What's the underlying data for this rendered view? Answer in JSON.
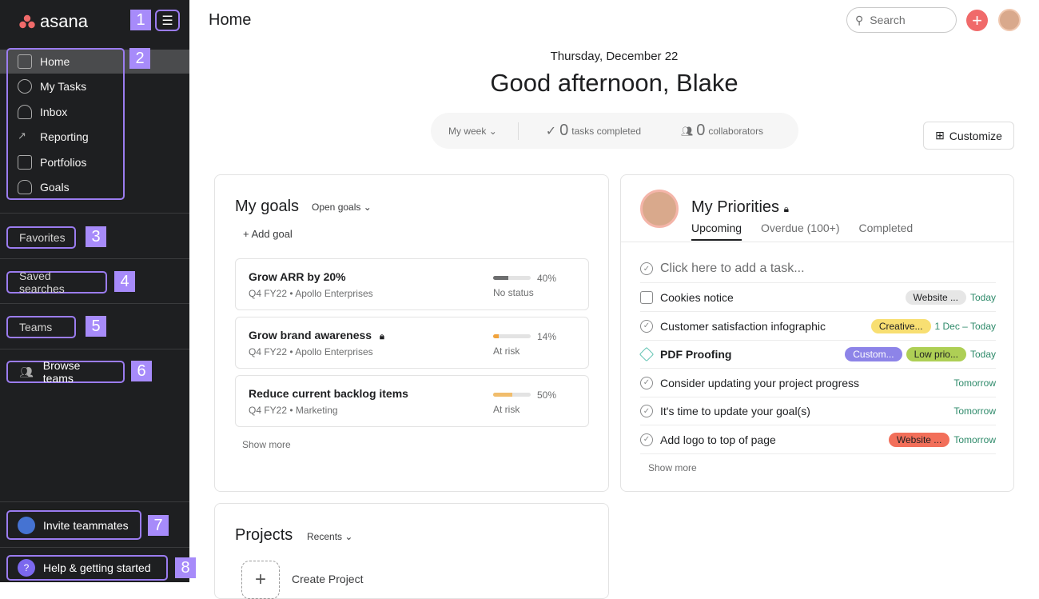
{
  "sidebar": {
    "logo": "asana",
    "nav": [
      {
        "label": "Home",
        "icon": "home-icon"
      },
      {
        "label": "My Tasks",
        "icon": "check-circle-icon"
      },
      {
        "label": "Inbox",
        "icon": "bell-icon"
      },
      {
        "label": "Reporting",
        "icon": "chart-line-icon"
      },
      {
        "label": "Portfolios",
        "icon": "folder-chart-icon"
      },
      {
        "label": "Goals",
        "icon": "person-icon"
      }
    ],
    "favorites": "Favorites",
    "saved_searches": "Saved searches",
    "teams": "Teams",
    "browse_teams": "Browse teams",
    "invite": "Invite teammates",
    "help": "Help & getting started",
    "markers": [
      "1",
      "2",
      "3",
      "4",
      "5",
      "6",
      "7",
      "8"
    ]
  },
  "header": {
    "title": "Home",
    "search_placeholder": "Search"
  },
  "greeting": {
    "date": "Thursday, December 22",
    "text": "Good afternoon, Blake"
  },
  "stats": {
    "period": "My week",
    "tasks_count": "0",
    "tasks_label": "tasks completed",
    "collab_count": "0",
    "collab_label": "collaborators"
  },
  "customize": "Customize",
  "goals": {
    "title": "My goals",
    "filter": "Open goals",
    "add": "Add goal",
    "show_more": "Show more",
    "items": [
      {
        "title": "Grow ARR by 20%",
        "sub": "Q4 FY22 • Apollo Enterprises",
        "pct": "40%",
        "progress": 40,
        "status": "No status",
        "color": "#6d6e6f"
      },
      {
        "title": "Grow brand awareness",
        "sub": "Q4 FY22 • Apollo Enterprises",
        "pct": "14%",
        "progress": 14,
        "status": "At risk",
        "color": "#f1a33c"
      },
      {
        "title": "Reduce current backlog items",
        "sub": "Q4 FY22 • Marketing",
        "pct": "50%",
        "progress": 50,
        "status": "At risk",
        "color": "#f1bd6c"
      }
    ]
  },
  "priorities": {
    "title": "My Priorities",
    "tabs": [
      "Upcoming",
      "Overdue (100+)",
      "Completed"
    ],
    "add_task": "Click here to add a task...",
    "show_more": "Show more",
    "tasks": [
      {
        "name": "Cookies notice",
        "tags": [
          {
            "label": "Website ...",
            "bg": "#e6e6e6",
            "fg": "#1e1f21"
          }
        ],
        "due": "Today"
      },
      {
        "name": "Customer satisfaction infographic",
        "tags": [
          {
            "label": "Creative...",
            "bg": "#f8df72",
            "fg": "#1e1f21"
          }
        ],
        "due": "1 Dec – Today"
      },
      {
        "name": "PDF Proofing",
        "bold": true,
        "tags": [
          {
            "label": "Custom...",
            "bg": "#8d84e8",
            "fg": "#fff"
          },
          {
            "label": "Low prio...",
            "bg": "#aecf55",
            "fg": "#1e1f21"
          }
        ],
        "due": "Today"
      },
      {
        "name": "Consider updating your project progress",
        "tags": [],
        "due": "Tomorrow"
      },
      {
        "name": "It's time to update your goal(s)",
        "tags": [],
        "due": "Tomorrow"
      },
      {
        "name": "Add logo to top of page",
        "tags": [
          {
            "label": "Website ...",
            "bg": "#f26f5a",
            "fg": "#1e1f21"
          }
        ],
        "due": "Tomorrow"
      }
    ]
  },
  "projects": {
    "title": "Projects",
    "filter": "Recents",
    "create": "Create Project"
  }
}
